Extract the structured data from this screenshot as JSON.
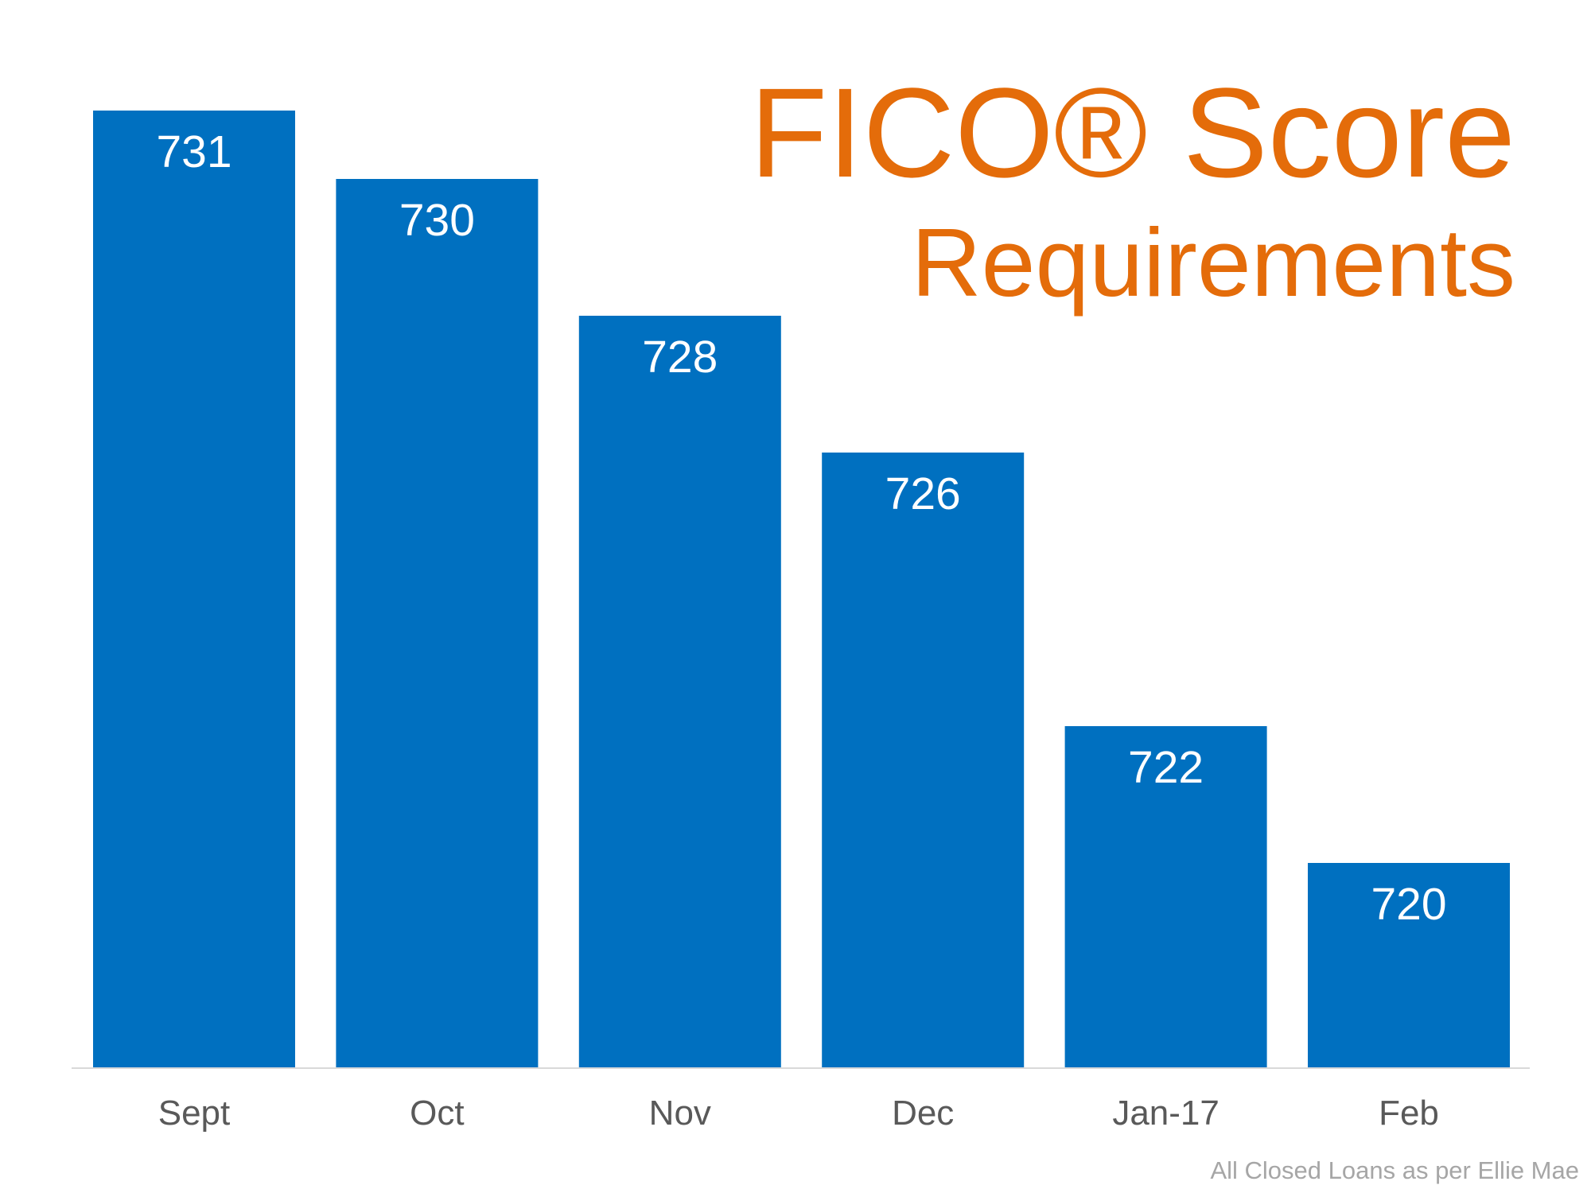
{
  "chart_data": {
    "type": "bar",
    "title": "FICO® Score",
    "subtitle": "Requirements",
    "categories": [
      "Sept",
      "Oct",
      "Nov",
      "Dec",
      "Jan-17",
      "Feb"
    ],
    "values": [
      731,
      730,
      728,
      726,
      722,
      720
    ],
    "color": "#0070c0",
    "ylim": [
      717,
      731
    ],
    "note": "All Closed Loans as per Ellie Mae"
  }
}
